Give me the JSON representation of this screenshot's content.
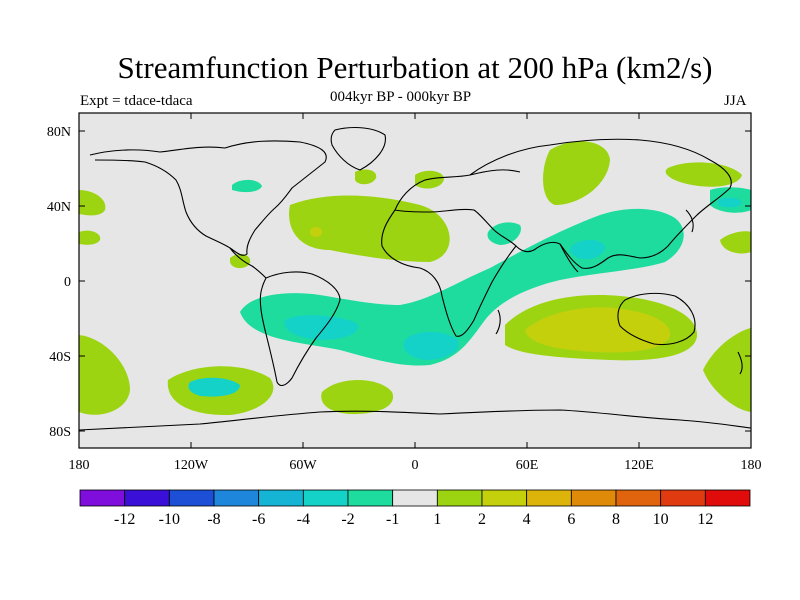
{
  "header": {
    "title": "Streamfunction Perturbation at 200 hPa (km2/s)",
    "subtitle": "004kyr BP - 000kyr BP",
    "expt": "Expt = tdace-tdaca",
    "season": "JJA"
  },
  "axes": {
    "lat_labels": [
      "80N",
      "40N",
      "0",
      "40S",
      "80S"
    ],
    "lon_labels": [
      "180",
      "120W",
      "60W",
      "0",
      "60E",
      "120E",
      "180"
    ]
  },
  "colorbar": {
    "colors": [
      "#7f0ddb",
      "#3a0fd8",
      "#1c4fd6",
      "#1e87dc",
      "#16b4d4",
      "#14d2c8",
      "#1edc9e",
      "#e6e6e6",
      "#9cd412",
      "#c5d00c",
      "#dcb40a",
      "#e08a0a",
      "#e0640e",
      "#e03a10",
      "#e00c0c"
    ],
    "labels": [
      "-12",
      "-10",
      "-8",
      "-6",
      "-4",
      "-2",
      "-1",
      "1",
      "2",
      "4",
      "6",
      "8",
      "10",
      "12"
    ]
  },
  "colors": {
    "neutral": "#e6e6e6",
    "pos2": "#9cd412",
    "pos4": "#c5d00c",
    "neg2": "#1edc9e",
    "neg4": "#14d2c8"
  }
}
